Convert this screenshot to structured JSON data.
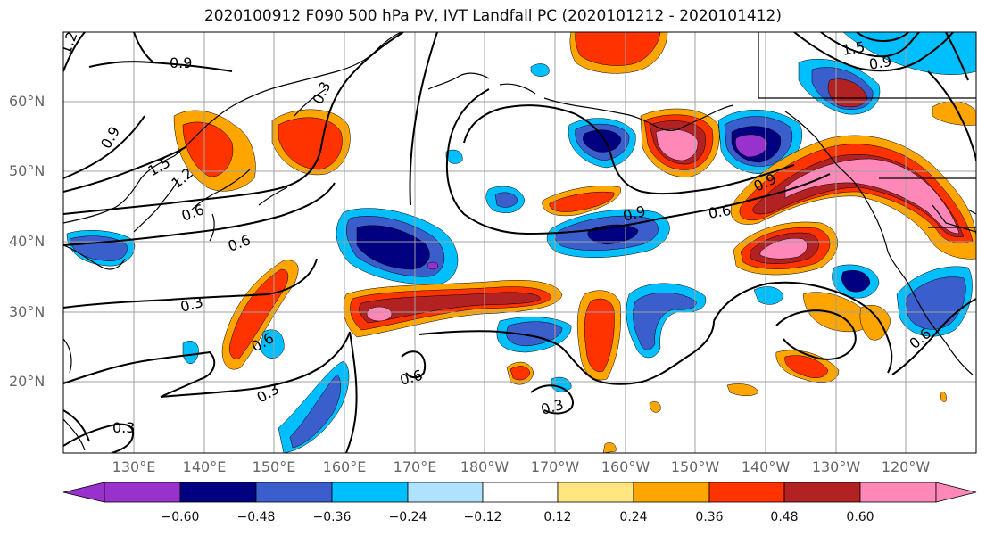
{
  "title": "2020100912 F090 500 hPa PV, IVT Landfall PC (2020101212 - 2020101412)",
  "lat_labels": [
    "60°N",
    "50°N",
    "40°N",
    "30°N",
    "20°N"
  ],
  "lon_labels": [
    "130°E",
    "140°E",
    "150°E",
    "160°E",
    "170°E",
    "180°W",
    "170°W",
    "160°W",
    "150°W",
    "140°W",
    "130°W",
    "120°W"
  ],
  "colorbar": {
    "ticks": [
      "−0.60",
      "−0.48",
      "−0.36",
      "−0.24",
      "−0.12",
      "0.12",
      "0.24",
      "0.36",
      "0.48",
      "0.60"
    ],
    "colors": [
      "#9932cc",
      "#000080",
      "#3a5fcd",
      "#00bfff",
      "#b0e2ff",
      "#ffffff",
      "#ffe680",
      "#ffa500",
      "#ff3300",
      "#b22222",
      "#ff88b8"
    ]
  },
  "contour_labels": [
    "0.9",
    "1.2",
    "0.9",
    "0.3",
    "1.5",
    "1.2",
    "0.6",
    "0.6",
    "0.3",
    "0.6",
    "0.3",
    "0.6",
    "0.3",
    "0.3",
    "0.9",
    "0.6",
    "0.9",
    "1.5",
    "0.9",
    "0.6"
  ]
}
